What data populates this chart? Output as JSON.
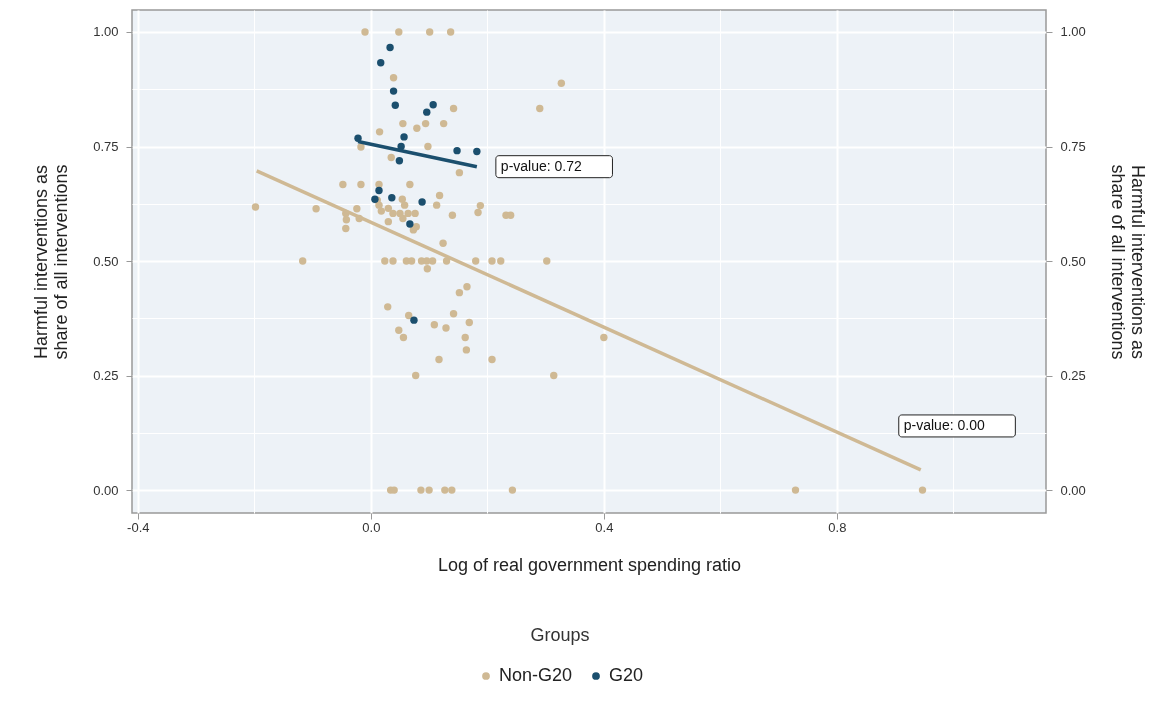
{
  "chart_data": {
    "type": "scatter",
    "xlabel": "Log of real government spending ratio",
    "ylabel": "Harmful interventions as share of all interventions",
    "y2label": "Harmful interventions as share of all interventions",
    "legend_title": "Groups",
    "legend": "bottom",
    "grid": true,
    "marker": "circle",
    "xlim": [
      -0.41,
      1.159
    ],
    "ylim": [
      -0.05,
      1.048
    ],
    "y2lim": [
      -0.05,
      1.048
    ],
    "xticks": [
      -0.4,
      {
        "value": -0.2,
        "label": null
      },
      {
        "value": 0,
        "label": "0.0"
      },
      {
        "value": 0.2,
        "label": null
      },
      0.4,
      {
        "value": 0.6,
        "label": null
      },
      0.8,
      {
        "value": 1.0,
        "label": null
      }
    ],
    "yticks": [
      {
        "value": 0,
        "label": "0.00"
      },
      {
        "value": 0.125,
        "label": null
      },
      {
        "value": 0.25,
        "label": "0.25"
      },
      {
        "value": 0.375,
        "label": null
      },
      {
        "value": 0.5,
        "label": "0.50"
      },
      {
        "value": 0.625,
        "label": null
      },
      {
        "value": 0.75,
        "label": "0.75"
      },
      {
        "value": 0.875,
        "label": null
      },
      {
        "value": 1,
        "label": "1.00"
      }
    ],
    "y2ticks": [
      {
        "value": 0,
        "label": "0.00"
      },
      {
        "value": 0.25,
        "label": "0.25"
      },
      {
        "value": 0.5,
        "label": "0.50"
      },
      {
        "value": 0.75,
        "label": "0.75"
      },
      {
        "value": 1,
        "label": "1.00"
      }
    ],
    "annotations": [
      {
        "text": "p-value: 0.72",
        "x": 0.182,
        "y": 0.706
      },
      {
        "text": "p-value: 0.00",
        "x": 0.944,
        "y": 0.044
      }
    ],
    "series": [
      {
        "name": "Non-G20",
        "color": "#cfb994",
        "x": [
          -0.01,
          0.048,
          0.101,
          0.137,
          0.039,
          0.142,
          0.29,
          0.055,
          0.079,
          0.094,
          0.125,
          0.015,
          -0.017,
          0.098,
          0.035,
          0.152,
          -0.048,
          -0.017,
          0.014,
          0.067,
          0.118,
          -0.198,
          -0.094,
          -0.024,
          -0.043,
          -0.042,
          -0.043,
          -0.02,
          0.011,
          0.014,
          0.018,
          0.03,
          0.038,
          0.054,
          0.058,
          0.05,
          0.064,
          0.076,
          0.03,
          0.055,
          0.078,
          0.073,
          0.113,
          0.14,
          0.184,
          0.188,
          0.232,
          0.24,
          0.124,
          0.327,
          -0.117,
          0.024,
          0.038,
          0.061,
          0.07,
          0.087,
          0.096,
          0.106,
          0.13,
          0.18,
          0.208,
          0.223,
          0.302,
          0.097,
          0.165,
          0.152,
          0.029,
          0.065,
          0.142,
          0.169,
          0.109,
          0.129,
          0.048,
          0.056,
          0.162,
          0.164,
          0.117,
          0.208,
          0.077,
          0.4,
          0.314,
          0.034,
          0.04,
          0.086,
          0.1,
          0.127,
          0.139,
          0.243,
          0.729,
          0.947
        ],
        "values": [
          1.0,
          1.0,
          1.0,
          1.0,
          0.9,
          0.833,
          0.833,
          0.8,
          0.79,
          0.8,
          0.8,
          0.782,
          0.749,
          0.75,
          0.726,
          0.693,
          0.667,
          0.667,
          0.667,
          0.667,
          0.643,
          0.618,
          0.614,
          0.614,
          0.604,
          0.59,
          0.571,
          0.593,
          0.633,
          0.622,
          0.609,
          0.615,
          0.604,
          0.635,
          0.622,
          0.604,
          0.604,
          0.604,
          0.586,
          0.593,
          0.575,
          0.568,
          0.622,
          0.6,
          0.606,
          0.621,
          0.6,
          0.6,
          0.539,
          0.888,
          0.5,
          0.5,
          0.5,
          0.5,
          0.5,
          0.5,
          0.5,
          0.5,
          0.5,
          0.5,
          0.5,
          0.5,
          0.5,
          0.483,
          0.444,
          0.431,
          0.4,
          0.381,
          0.385,
          0.366,
          0.361,
          0.354,
          0.349,
          0.333,
          0.333,
          0.306,
          0.285,
          0.285,
          0.25,
          0.333,
          0.25,
          0,
          0,
          0,
          0,
          0,
          0,
          0,
          0,
          0
        ]
      },
      {
        "name": "G20",
        "color": "#1b4f6e",
        "x": [
          0.033,
          0.017,
          0.039,
          0.042,
          0.107,
          0.096,
          0.057,
          -0.022,
          0.052,
          0.148,
          0.182,
          0.049,
          0.014,
          0.007,
          0.036,
          0.088,
          0.067,
          0.074
        ],
        "values": [
          0.966,
          0.933,
          0.871,
          0.84,
          0.841,
          0.825,
          0.771,
          0.768,
          0.75,
          0.741,
          0.739,
          0.719,
          0.654,
          0.635,
          0.638,
          0.629,
          0.581,
          0.371
        ]
      },
      {
        "type": "line",
        "marker": "none",
        "color": "#cfb994",
        "x": [
          -0.196,
          0.944
        ],
        "values": [
          0.697,
          0.044
        ]
      },
      {
        "type": "line",
        "marker": "none",
        "color": "#1b4f6e",
        "x": [
          -0.022,
          0.182
        ],
        "values": [
          0.761,
          0.706
        ]
      }
    ]
  }
}
